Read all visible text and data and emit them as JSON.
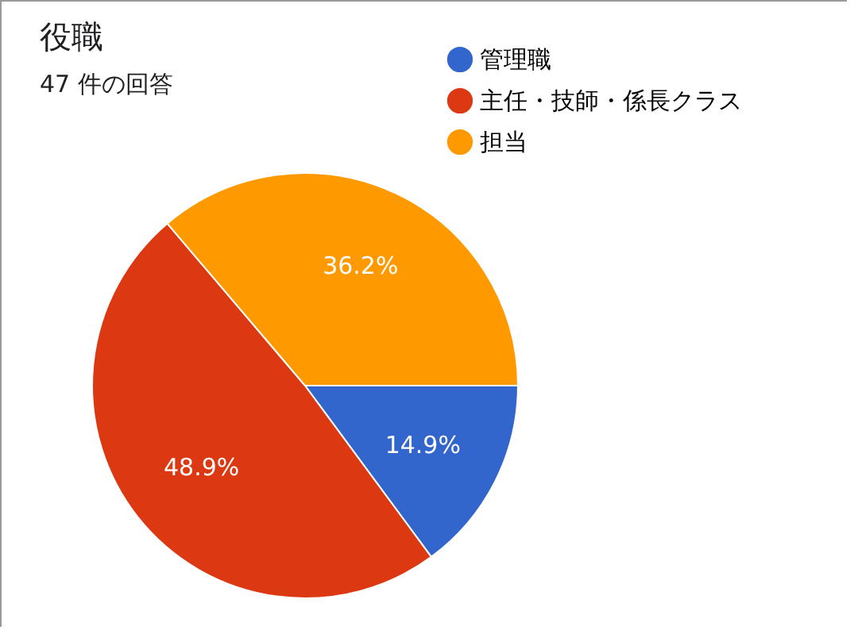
{
  "chart_data": {
    "type": "pie",
    "title": "役職",
    "subtitle": "47 件の回答",
    "categories": [
      "管理職",
      "主任・技師・係長クラス",
      "担当"
    ],
    "values": [
      14.9,
      48.9,
      36.2
    ],
    "colors": [
      "#3366cc",
      "#dc3912",
      "#ff9900"
    ],
    "value_labels": [
      "14.9%",
      "48.9%",
      "36.2%"
    ],
    "legend": "top right"
  }
}
